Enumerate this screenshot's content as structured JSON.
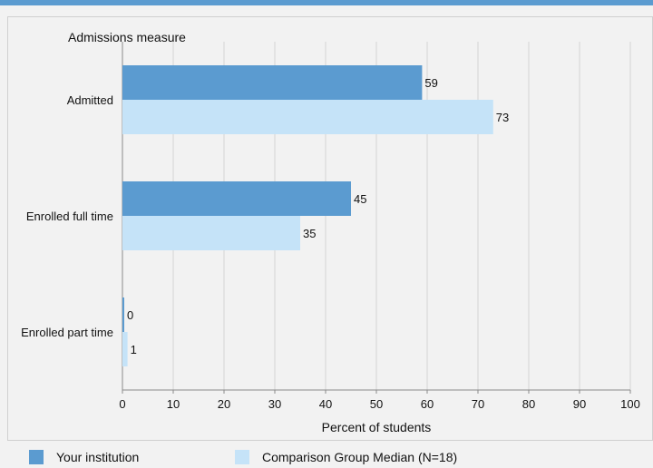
{
  "chart_data": {
    "type": "bar",
    "orientation": "horizontal",
    "title": "Admissions measure",
    "xlabel": "Percent of students",
    "categories": [
      "Admitted",
      "Enrolled full time",
      "Enrolled part time"
    ],
    "series": [
      {
        "name": "Your institution",
        "color": "#5b9bd0",
        "values": [
          59,
          45,
          0
        ]
      },
      {
        "name": "Comparison Group Median (N=18)",
        "color": "#c5e3f8",
        "values": [
          73,
          35,
          1
        ]
      }
    ],
    "xlim": [
      0,
      100
    ],
    "xticks": [
      0,
      10,
      20,
      30,
      40,
      50,
      60,
      70,
      80,
      90,
      100
    ],
    "grid": true,
    "legend_position": "bottom"
  }
}
